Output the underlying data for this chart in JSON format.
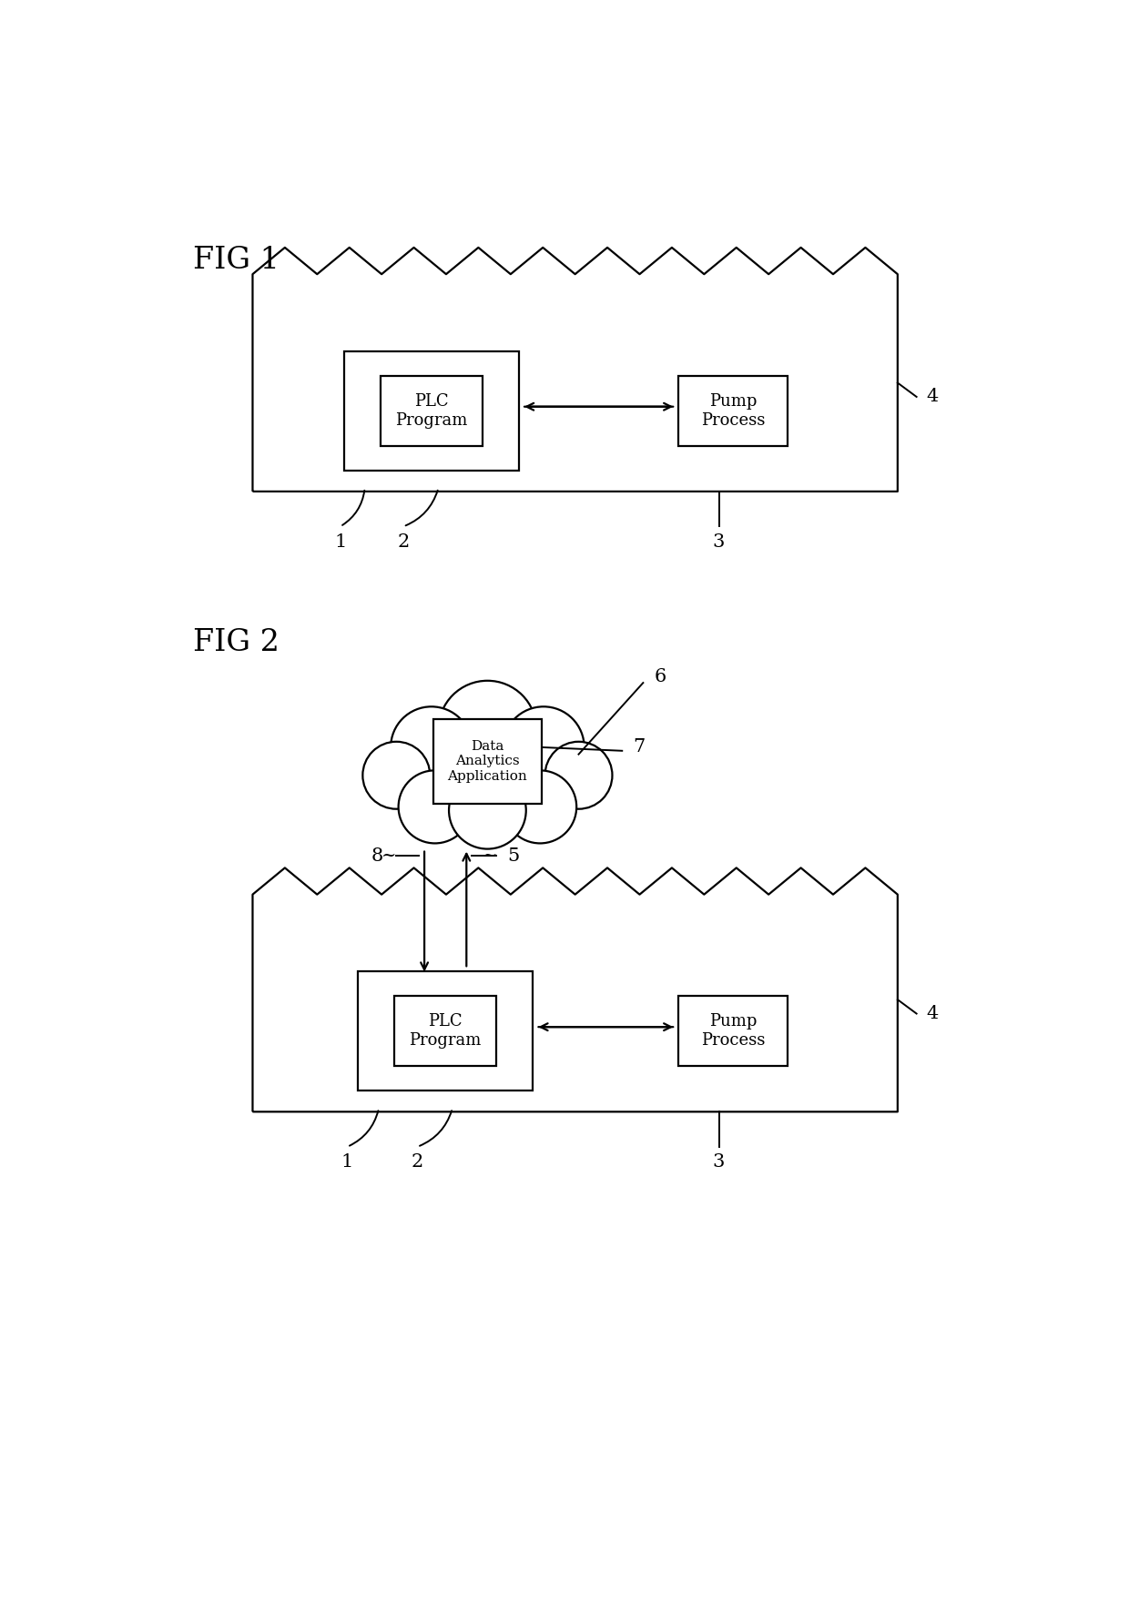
{
  "fig_width": 12.4,
  "fig_height": 17.72,
  "bg_color": "#ffffff",
  "line_color": "#000000",
  "fig1_label": "FIG 1",
  "fig2_label": "FIG 2",
  "plc_label": "PLC\nProgram",
  "pump_label": "Pump\nProcess",
  "data_analytics_label": "Data\nAnalytics\nApplication",
  "font_size_fig": 24,
  "font_size_box": 13,
  "font_size_label": 15,
  "lw": 1.6
}
